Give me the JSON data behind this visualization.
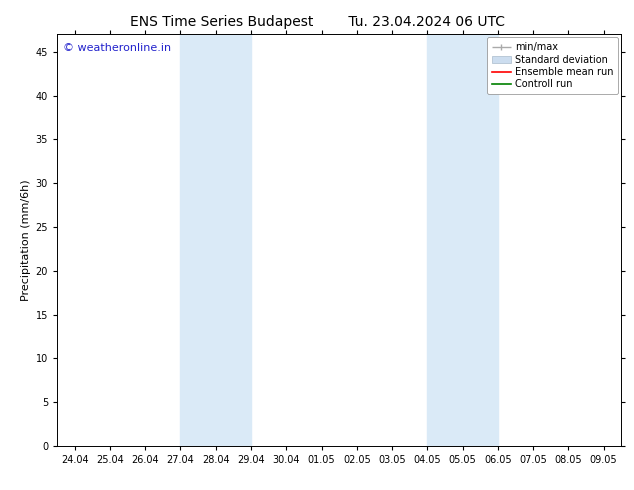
{
  "title_left": "ENS Time Series Budapest",
  "title_right": "Tu. 23.04.2024 06 UTC",
  "ylabel": "Precipitation (mm/6h)",
  "watermark": "© weatheronline.in",
  "ylim": [
    0,
    47
  ],
  "yticks": [
    0,
    5,
    10,
    15,
    20,
    25,
    30,
    35,
    40,
    45
  ],
  "xtick_labels": [
    "24.04",
    "25.04",
    "26.04",
    "27.04",
    "28.04",
    "29.04",
    "30.04",
    "01.05",
    "02.05",
    "03.05",
    "04.05",
    "05.05",
    "06.05",
    "07.05",
    "08.05",
    "09.05"
  ],
  "xtick_positions": [
    0,
    1,
    2,
    3,
    4,
    5,
    6,
    7,
    8,
    9,
    10,
    11,
    12,
    13,
    14,
    15
  ],
  "xlim": [
    -0.5,
    15.5
  ],
  "shaded_regions": [
    {
      "x_start": 3,
      "x_end": 5,
      "color": "#daeaf7",
      "alpha": 1.0
    },
    {
      "x_start": 10,
      "x_end": 12,
      "color": "#daeaf7",
      "alpha": 1.0
    }
  ],
  "bg_color": "#ffffff",
  "plot_bg_color": "#ffffff",
  "spine_color": "#000000",
  "tick_color": "#000000",
  "watermark_color": "#2222cc",
  "title_fontsize": 10,
  "ylabel_fontsize": 8,
  "tick_fontsize": 7,
  "legend_fontsize": 7,
  "watermark_fontsize": 8,
  "minmax_color": "#aaaaaa",
  "std_face_color": "#ccddef",
  "std_edge_color": "#aabbcc",
  "ensemble_color": "#ff0000",
  "control_color": "#008000"
}
